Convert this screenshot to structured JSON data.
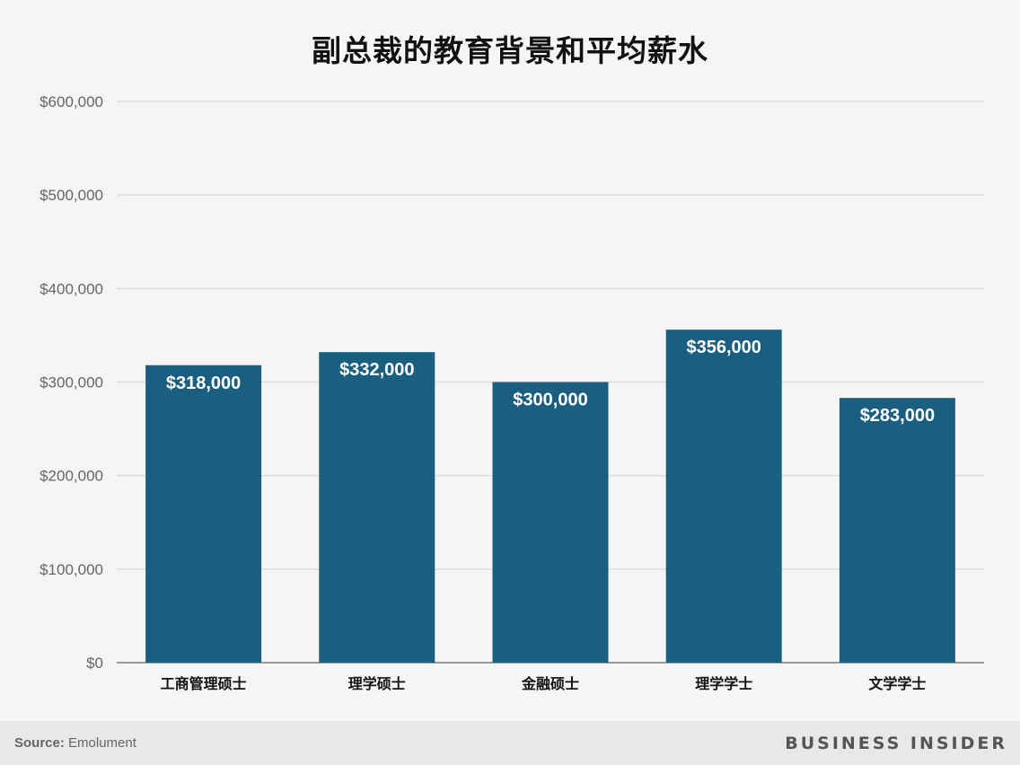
{
  "chart_data": {
    "type": "bar",
    "title": "副总裁的教育背景和平均薪水",
    "categories": [
      "工商管理硕士",
      "理学硕士",
      "金融硕士",
      "理学学士",
      "文学学士"
    ],
    "values": [
      318000,
      332000,
      300000,
      356000,
      283000
    ],
    "data_labels": [
      "$318,000",
      "$332,000",
      "$300,000",
      "$356,000",
      "$283,000"
    ],
    "ylim": [
      0,
      600000
    ],
    "yticks": [
      0,
      100000,
      200000,
      300000,
      400000,
      500000,
      600000
    ],
    "ytick_labels": [
      "$0",
      "$100,000",
      "$200,000",
      "$300,000",
      "$400,000",
      "$500,000",
      "$600,000"
    ],
    "xlabel": "",
    "ylabel": "",
    "grid": true,
    "bar_color": "#1a5f7f"
  },
  "footer": {
    "source_label": "Source:",
    "source_value": "Emolument",
    "brand": "BUSINESS INSIDER"
  }
}
